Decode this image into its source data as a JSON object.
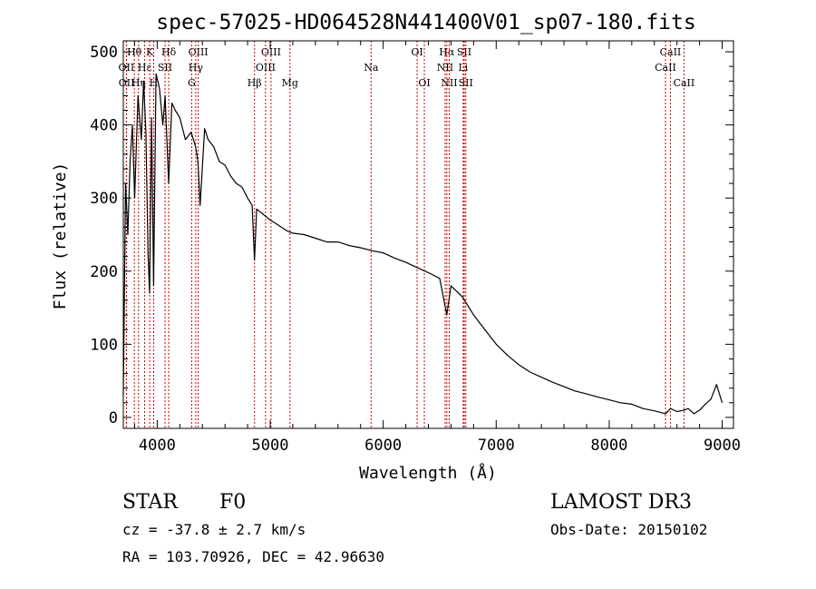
{
  "chart_data": {
    "type": "line",
    "title": "spec-57025-HD064528N441400V01_sp07-180.fits",
    "xlabel": "Wavelength (Å)",
    "ylabel": "Flux (relative)",
    "xlim": [
      3700,
      9100
    ],
    "ylim": [
      -15,
      515
    ],
    "xticks": [
      4000,
      5000,
      6000,
      7000,
      8000,
      9000
    ],
    "yticks": [
      0,
      100,
      200,
      300,
      400,
      500
    ],
    "series": [
      {
        "name": "spectrum",
        "x": [
          3700,
          3720,
          3740,
          3760,
          3780,
          3800,
          3830,
          3860,
          3880,
          3900,
          3920,
          3933,
          3950,
          3968,
          3990,
          4020,
          4050,
          4070,
          4101,
          4130,
          4160,
          4200,
          4250,
          4300,
          4340,
          4360,
          4380,
          4420,
          4450,
          4500,
          4550,
          4600,
          4650,
          4700,
          4750,
          4800,
          4840,
          4861,
          4880,
          4920,
          4960,
          5000,
          5050,
          5100,
          5150,
          5200,
          5300,
          5400,
          5500,
          5600,
          5700,
          5800,
          5900,
          6000,
          6100,
          6200,
          6300,
          6400,
          6500,
          6563,
          6600,
          6700,
          6800,
          6900,
          7000,
          7100,
          7200,
          7300,
          7400,
          7500,
          7600,
          7700,
          7800,
          7900,
          8000,
          8100,
          8200,
          8300,
          8400,
          8498,
          8542,
          8600,
          8662,
          8700,
          8750,
          8800,
          8850,
          8900,
          8950,
          9000
        ],
        "y": [
          30,
          320,
          250,
          350,
          400,
          300,
          440,
          380,
          460,
          390,
          220,
          170,
          410,
          180,
          470,
          450,
          400,
          440,
          320,
          430,
          420,
          410,
          380,
          390,
          370,
          350,
          290,
          395,
          380,
          370,
          350,
          345,
          330,
          320,
          315,
          300,
          290,
          215,
          285,
          280,
          275,
          270,
          265,
          260,
          255,
          252,
          250,
          245,
          240,
          240,
          235,
          232,
          228,
          225,
          218,
          212,
          205,
          198,
          190,
          140,
          180,
          165,
          140,
          120,
          100,
          85,
          72,
          62,
          55,
          48,
          42,
          36,
          32,
          28,
          24,
          20,
          18,
          12,
          9,
          5,
          12,
          8,
          10,
          12,
          5,
          10,
          18,
          25,
          45,
          20
        ]
      }
    ],
    "line_markers": [
      {
        "label": "Hθ",
        "x": 3798,
        "row": 1
      },
      {
        "label": "OII",
        "x": 3727,
        "row": 2
      },
      {
        "label": "OII",
        "x": 3729,
        "row": 3
      },
      {
        "label": "Hη",
        "x": 3835,
        "row": 3
      },
      {
        "label": "Hε",
        "x": 3889,
        "row": 2
      },
      {
        "label": "K",
        "x": 3934,
        "row": 1
      },
      {
        "label": "SII",
        "x": 4069,
        "row": 2
      },
      {
        "label": "H",
        "x": 3969,
        "row": 3
      },
      {
        "label": "Hδ",
        "x": 4102,
        "row": 1
      },
      {
        "label": "OIII",
        "x": 4363,
        "row": 1
      },
      {
        "label": "Hγ",
        "x": 4341,
        "row": 2
      },
      {
        "label": "G",
        "x": 4305,
        "row": 3
      },
      {
        "label": "Hβ",
        "x": 4861,
        "row": 3
      },
      {
        "label": "OIII",
        "x": 5007,
        "row": 1
      },
      {
        "label": "OIII",
        "x": 4959,
        "row": 2
      },
      {
        "label": "Mg",
        "x": 5175,
        "row": 3
      },
      {
        "label": "Na",
        "x": 5893,
        "row": 2
      },
      {
        "label": "OI",
        "x": 6300,
        "row": 1
      },
      {
        "label": "OI",
        "x": 6364,
        "row": 3
      },
      {
        "label": "Hα",
        "x": 6563,
        "row": 1
      },
      {
        "label": "NII",
        "x": 6548,
        "row": 2
      },
      {
        "label": "NII",
        "x": 6584,
        "row": 3
      },
      {
        "label": "SII",
        "x": 6717,
        "row": 1
      },
      {
        "label": "Li",
        "x": 6708,
        "row": 2
      },
      {
        "label": "SII",
        "x": 6731,
        "row": 3
      },
      {
        "label": "CaII",
        "x": 8542,
        "row": 1
      },
      {
        "label": "CaII",
        "x": 8498,
        "row": 2
      },
      {
        "label": "CaII",
        "x": 8662,
        "row": 3
      }
    ]
  },
  "info": {
    "class_label": "STAR",
    "subclass": "F0",
    "survey": "LAMOST DR3",
    "cz": "cz = -37.8 ± 2.7 km/s",
    "obs_date": "Obs-Date: 20150102",
    "coords": "RA = 103.70926, DEC =  42.96630"
  }
}
